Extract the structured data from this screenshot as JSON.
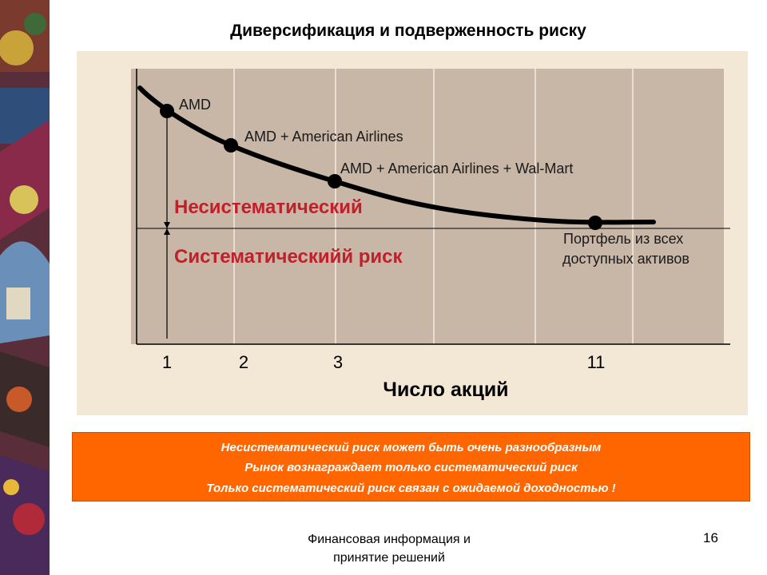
{
  "title": "Диверсификация и подверженность риску",
  "chart": {
    "point_labels": {
      "amd": "AMD",
      "amd_aa": "AMD + American Airlines",
      "amd_aa_wm": "AMD + American Airlines + Wal-Mart",
      "portfolio_line1": "Портфель из всех",
      "portfolio_line2": "доступных активов"
    },
    "risk_labels": {
      "unsystematic": "Несистематический",
      "systematic": "Систематическийй риск"
    },
    "x_ticks": [
      "1",
      "2",
      "3",
      "11"
    ],
    "xlabel": "Число акций",
    "colors": {
      "curve": "#000000",
      "risk_text": "#c0202a",
      "plot_bg": "#c8b6a6",
      "panel_bg": "#f3e7d6"
    }
  },
  "chart_data": {
    "type": "line",
    "title": "",
    "xlabel": "Число акций",
    "ylabel": "",
    "x_ticks": [
      "1",
      "2",
      "3",
      "11"
    ],
    "points": [
      {
        "x": "1",
        "label": "AMD"
      },
      {
        "x": "2",
        "label": "AMD + American Airlines"
      },
      {
        "x": "3",
        "label": "AMD + American Airlines + Wal-Mart"
      },
      {
        "x": "11",
        "label": "Портфель из всех доступных активов"
      }
    ],
    "regions": [
      "Несистематический",
      "Систематическийй риск"
    ],
    "grid": true
  },
  "notes": {
    "line1": "Несистематический риск может быть очень разнообразным",
    "line2": "Рынок вознаграждает только систематический риск",
    "line3": "Только систематический риск связан с ожидаемой доходностью !"
  },
  "footer": {
    "line1": "Финансовая информация и",
    "line2": "принятие решений",
    "page_number": "16"
  }
}
